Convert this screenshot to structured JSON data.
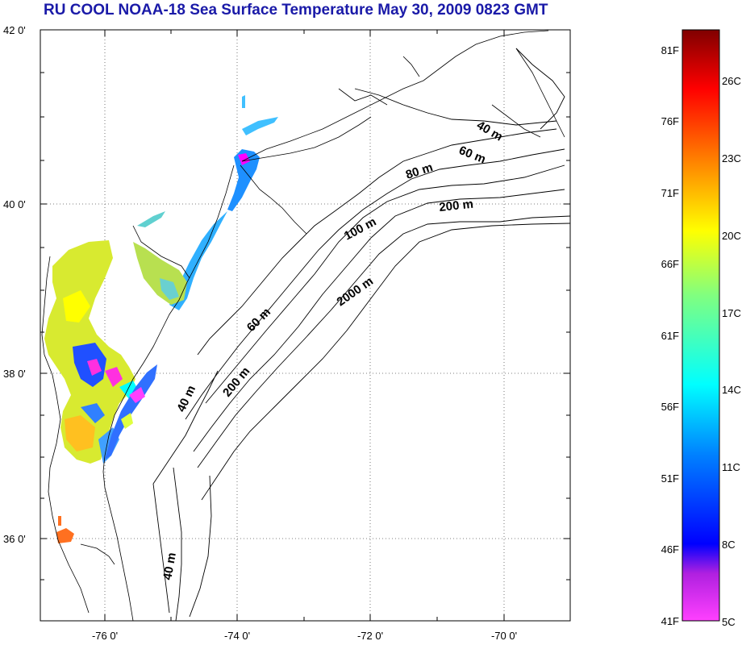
{
  "title": "RU COOL  NOAA-18 Sea Surface Temperature May 30, 2009 0823 GMT",
  "map": {
    "lat_labels": [
      "42 0'",
      "40 0'",
      "38 0'",
      "36 0'"
    ],
    "lon_labels": [
      "-76 0'",
      "-74 0'",
      "-72 0'",
      "-70 0'"
    ],
    "isobath_labels": [
      "40 m",
      "60 m",
      "80 m",
      "200 m",
      "100 m",
      "2000 m",
      "60 m",
      "200 m",
      "40 m",
      "40 m"
    ]
  },
  "colorbar": {
    "fahrenheit_labels": [
      "81F",
      "76F",
      "71F",
      "66F",
      "61F",
      "56F",
      "51F",
      "46F",
      "41F"
    ],
    "celsius_labels": [
      "26C",
      "23C",
      "20C",
      "17C",
      "14C",
      "11C",
      "8C",
      "5C"
    ],
    "colors": [
      "#800000",
      "#ff0000",
      "#ff8000",
      "#ffff00",
      "#80ff80",
      "#00ffff",
      "#0080ff",
      "#0000ff",
      "#8000ff",
      "#ff00ff"
    ]
  }
}
